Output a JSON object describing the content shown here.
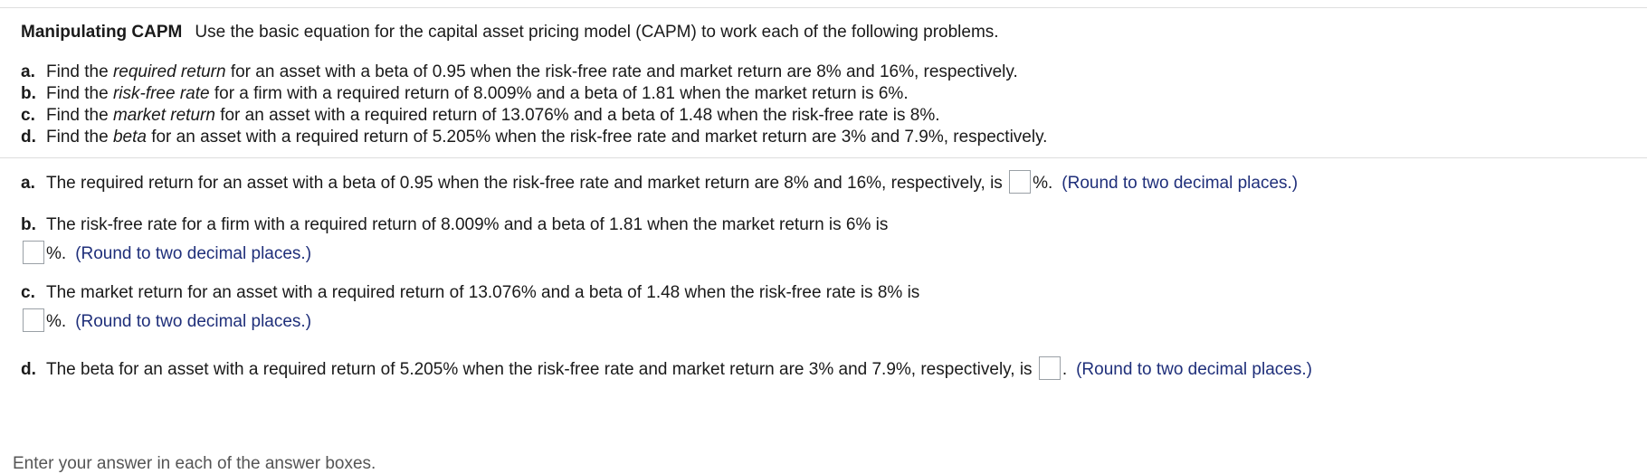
{
  "header": {
    "title": "Manipulating CAPM",
    "instructions": "Use the basic equation for the capital asset pricing model (CAPM) to work each of the following problems."
  },
  "parts": [
    {
      "letter": "a.",
      "pre": "Find the ",
      "em": "required return",
      "post": " for an asset with a beta of 0.95 when the risk-free rate and market return are 8% and 16%, respectively."
    },
    {
      "letter": "b.",
      "pre": "Find the ",
      "em": "risk-free rate",
      "post": " for a firm with a required return of 8.009% and a beta of 1.81 when the market return is 6%."
    },
    {
      "letter": "c.",
      "pre": "Find the ",
      "em": "market return",
      "post": " for an asset with a required return of 13.076% and a beta of 1.48 when the risk-free rate is 8%."
    },
    {
      "letter": "d.",
      "pre": "Find the ",
      "em": "beta",
      "post": " for an asset with a required return of 5.205% when the risk-free rate and market return are 3% and 7.9%, respectively."
    }
  ],
  "answers": {
    "a": {
      "letter": "a.",
      "text": "The required return for an asset with a beta of 0.95 when the risk-free rate and market return are 8% and 16%, respectively, is",
      "value": "",
      "suffix": "%.",
      "hint": "(Round to two decimal places.)"
    },
    "b": {
      "letter": "b.",
      "text": "The risk-free rate for a firm with a required return of 8.009% and a beta of 1.81 when the market return is 6% is",
      "value": "",
      "suffix": "%.",
      "hint": "(Round to two decimal places.)"
    },
    "c": {
      "letter": "c.",
      "text": "The market return for an asset with a required return of 13.076% and a beta of 1.48 when the risk-free rate is 8% is",
      "value": "",
      "suffix": "%.",
      "hint": "(Round to two decimal places.)"
    },
    "d": {
      "letter": "d.",
      "text": "The beta for an asset with a required return of 5.205% when the risk-free rate and market return are 3% and 7.9%, respectively, is",
      "value": "",
      "suffix": ".",
      "hint": "(Round to two decimal places.)"
    }
  },
  "footer": {
    "text": "Enter your answer in each of the answer boxes."
  }
}
